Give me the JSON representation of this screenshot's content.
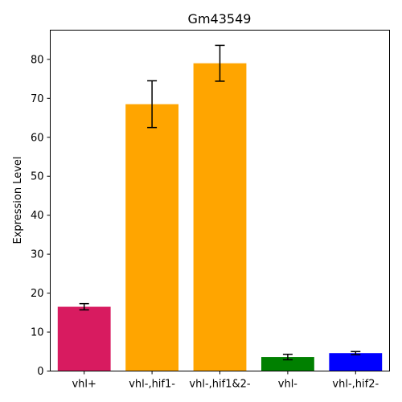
{
  "chart_data": {
    "type": "bar",
    "title": "Gm43549",
    "xlabel": "",
    "ylabel": "Expression Level",
    "ylim": [
      0,
      87.5
    ],
    "yticks": [
      0,
      10,
      20,
      30,
      40,
      50,
      60,
      70,
      80
    ],
    "categories": [
      "vhl+",
      "vhl-,hif1-",
      "vhl-,hif1&2-",
      "vhl-",
      "vhl-,hif2-"
    ],
    "values": [
      16.5,
      68.5,
      79.0,
      3.6,
      4.6
    ],
    "errors": [
      0.8,
      6.0,
      4.6,
      0.7,
      0.4
    ],
    "colors": [
      "#d81b60",
      "#ffa500",
      "#ffa500",
      "#008000",
      "#0000ff"
    ],
    "grid": false,
    "legend": "none"
  }
}
